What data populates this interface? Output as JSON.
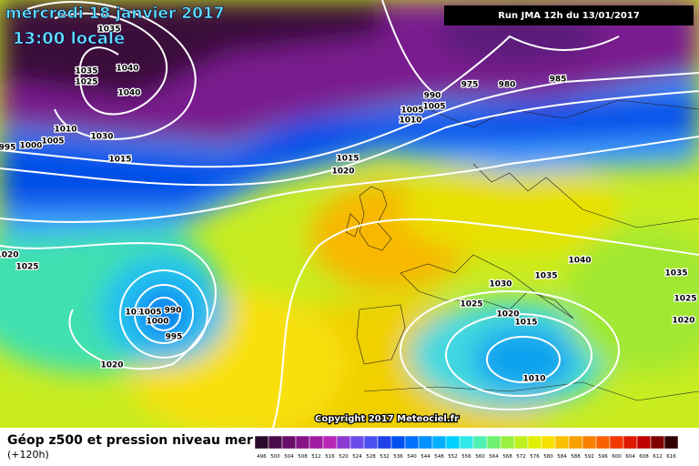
{
  "header": {
    "date": "mercredi 18 janvier 2017",
    "time": "13:00 locale",
    "run": "Run JMA 12h du 13/01/2017"
  },
  "isobar_labels": [
    "1035",
    "1040",
    "1035",
    "1025",
    "1040",
    "1030",
    "995",
    "1000",
    "1005",
    "1010",
    "1015",
    "990",
    "1005",
    "1005",
    "1010",
    "975",
    "980",
    "985",
    "1015",
    "1020",
    "1020",
    "1025",
    "1010",
    "1005",
    "990",
    "1000",
    "995",
    "1020",
    "1040",
    "1035",
    "1030",
    "1025",
    "1020",
    "1015",
    "1010",
    "1035",
    "1025",
    "1020"
  ],
  "footer": {
    "copyright": "Copyright 2017 Meteociel.fr",
    "legend_title": "Géop z500 et pression niveau mer",
    "lead_time": "(+120h)",
    "scale": {
      "labels": [
        "496",
        "500",
        "504",
        "508",
        "512",
        "516",
        "520",
        "524",
        "528",
        "532",
        "536",
        "540",
        "544",
        "548",
        "552",
        "556",
        "560",
        "564",
        "568",
        "572",
        "576",
        "580",
        "584",
        "588",
        "592",
        "596",
        "600",
        "604",
        "608",
        "612",
        "616"
      ],
      "colors": [
        "#2a0a2a",
        "#4a0c4a",
        "#680e68",
        "#861486",
        "#a01ca0",
        "#b828b8",
        "#8a3ad0",
        "#6a4ae8",
        "#4a50f0",
        "#2040e8",
        "#0050f0",
        "#0070ff",
        "#0090ff",
        "#00b0ff",
        "#00d0ff",
        "#30e8e8",
        "#50f0b0",
        "#70f070",
        "#98f040",
        "#c0f020",
        "#e0f000",
        "#f8e000",
        "#f8c000",
        "#f8a000",
        "#f88000",
        "#f86000",
        "#f03800",
        "#e01800",
        "#c00000",
        "#800000",
        "#300000"
      ]
    }
  }
}
